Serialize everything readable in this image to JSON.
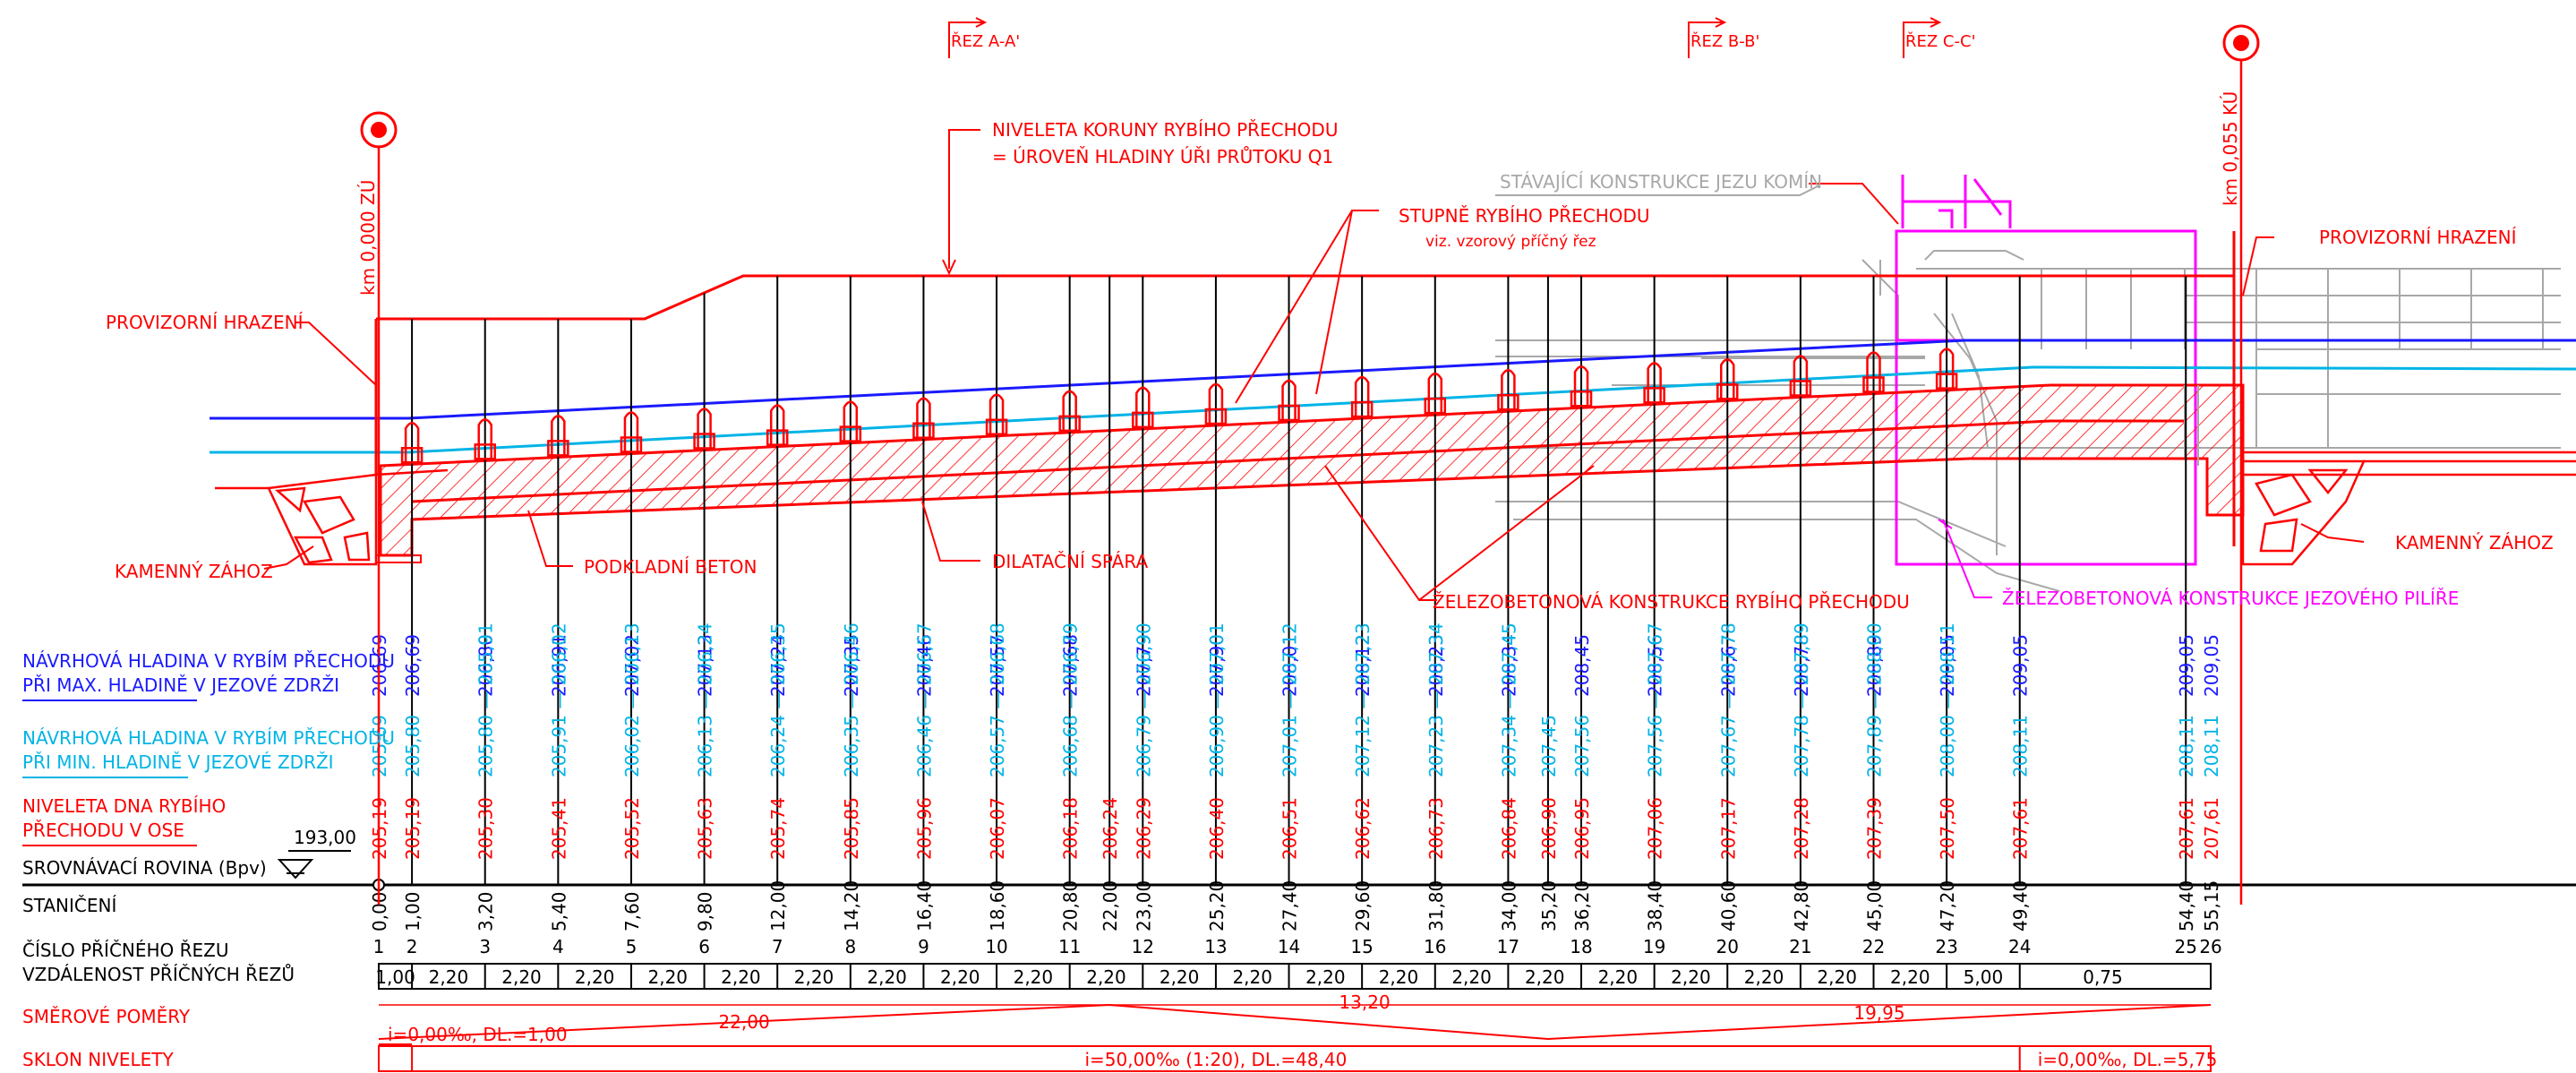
{
  "sections": [
    {
      "label": "ŘEZ A-A'"
    },
    {
      "label": "ŘEZ B-B'"
    },
    {
      "label": "ŘEZ C-C'"
    }
  ],
  "km_markers": [
    {
      "label": "km 0,000 ZÚ"
    },
    {
      "label": "km 0,055 KÚ"
    }
  ],
  "annotations": {
    "niveleta_line1": "NIVELETA KORUNY RYBÍHO PŘECHODU",
    "niveleta_line2": "= ÚROVEŇ HLADINY ÚŘI PRŮTOKU Q1",
    "stavajici": "STÁVAJÍCÍ KONSTRUKCE JEZU KOMÍN",
    "stupne_line1": "STUPNĚ RYBÍHO PŘECHODU",
    "stupne_line2": "viz.   vzorový příčný řez",
    "provizorni_left": "PROVIZORNÍ HRAZENÍ",
    "provizorni_right": "PROVIZORNÍ HRAZENÍ",
    "kamenny_left": "KAMENNÝ ZÁHOZ",
    "kamenny_right": "KAMENNÝ ZÁHOZ",
    "podkladni": "PODKLADNÍ BETON",
    "dilatacni": "DILATAČNÍ SPÁRA",
    "zelezo_prechod": "ŽELEZOBETONOVÁ KONSTRUKCE RYBÍHO PŘECHODU",
    "zelezo_pilire": "ŽELEZOBETONOVÁ KONSTRUKCE JEZOVÉHO PILÍŘE"
  },
  "row_labels": {
    "max_line1": "NÁVRHOVÁ HLADINA V RYBÍM PŘECHODU",
    "max_line2": "PŘI MAX. HLADINĚ V JEZOVÉ ZDRŽI",
    "min_line1": "NÁVRHOVÁ HLADINA V RYBÍM PŘECHODU",
    "min_line2": "PŘI MIN. HLADINĚ V JEZOVÉ ZDRŽI",
    "dno_line1": "NIVELETA DNA RYBÍHO",
    "dno_line2": "PŘECHODU V OSE",
    "srovnavaci": "SROVNÁVACÍ ROVINA (Bpv)",
    "srovnavaci_value": "193,00",
    "staniceni": "STANIČENÍ",
    "cislo": "ČÍSLO PŘÍČNÉHO ŘEZU",
    "vzdalenost": "VZDÁLENOST PŘÍČNÝCH ŘEZŮ",
    "smerove": "SMĚROVÉ POMĚRY",
    "sklon": "SKLON NIVELETY"
  },
  "profiles": [
    {
      "n": "1",
      "stan": "0,00",
      "max": "206,69",
      "min": "205,69",
      "dno": "205,19"
    },
    {
      "n": "2",
      "stan": "1,00",
      "max": "206,69",
      "min": "205,80",
      "dno": "205,19"
    },
    {
      "n": "3",
      "stan": "3,20",
      "max": "206,80",
      "min": "205,80 — 205,91",
      "dno": "205,30"
    },
    {
      "n": "4",
      "stan": "5,40",
      "max": "206,91",
      "min": "205,91 — 206,02",
      "dno": "205,41"
    },
    {
      "n": "5",
      "stan": "7,60",
      "max": "207,02",
      "min": "206,02 — 206,13",
      "dno": "205,52"
    },
    {
      "n": "6",
      "stan": "9,80",
      "max": "207,13",
      "min": "206,13 — 206,24",
      "dno": "205,63"
    },
    {
      "n": "7",
      "stan": "12,00",
      "max": "207,24",
      "min": "206,24 — 206,35",
      "dno": "205,74"
    },
    {
      "n": "8",
      "stan": "14,20",
      "max": "207,35",
      "min": "206,35 — 206,46",
      "dno": "205,85"
    },
    {
      "n": "9",
      "stan": "16,40",
      "max": "207,46",
      "min": "206,46 — 206,57",
      "dno": "205,96"
    },
    {
      "n": "10",
      "stan": "18,60",
      "max": "207,57",
      "min": "206,57 — 206,68",
      "dno": "206,07"
    },
    {
      "n": "11",
      "stan": "20,80",
      "max": "207,68",
      "min": "206,68 — 206,79",
      "dno": "206,18"
    },
    {
      "n": "",
      "stan": "22,00",
      "max": "",
      "min": "",
      "dno": "206,24"
    },
    {
      "n": "12",
      "stan": "23,00",
      "max": "207,79",
      "min": "206,79 — 206,90",
      "dno": "206,29"
    },
    {
      "n": "13",
      "stan": "25,20",
      "max": "207,90",
      "min": "206,90 — 207,01",
      "dno": "206,40"
    },
    {
      "n": "14",
      "stan": "27,40",
      "max": "208,01",
      "min": "207,01 — 207,12",
      "dno": "206,51"
    },
    {
      "n": "15",
      "stan": "29,60",
      "max": "208,12",
      "min": "207,12 — 207,23",
      "dno": "206,62"
    },
    {
      "n": "16",
      "stan": "31,80",
      "max": "208,23",
      "min": "207,23 — 207,34",
      "dno": "206,73"
    },
    {
      "n": "17",
      "stan": "34,00",
      "max": "208,34",
      "min": "207,34 — 207,45",
      "dno": "206,84"
    },
    {
      "n": "",
      "stan": "35,20",
      "max": "",
      "min": "207,45",
      "dno": "206,90"
    },
    {
      "n": "18",
      "stan": "36,20",
      "max": "208,45",
      "min": "207,56",
      "dno": "206,95"
    },
    {
      "n": "19",
      "stan": "38,40",
      "max": "208,56",
      "min": "207,56 — 207,67",
      "dno": "207,06"
    },
    {
      "n": "20",
      "stan": "40,60",
      "max": "208,67",
      "min": "207,67 — 207,78",
      "dno": "207,17"
    },
    {
      "n": "21",
      "stan": "42,80",
      "max": "208,78",
      "min": "207,78 — 207,89",
      "dno": "207,28"
    },
    {
      "n": "22",
      "stan": "45,00",
      "max": "208,89",
      "min": "207,89 — 208,00",
      "dno": "207,39"
    },
    {
      "n": "23",
      "stan": "47,20",
      "max": "209,05",
      "min": "208,00 — 208,11",
      "dno": "207,50"
    },
    {
      "n": "24",
      "stan": "49,40",
      "max": "209,05",
      "min": "208,11",
      "dno": "207,61"
    },
    {
      "n": "25",
      "stan": "54,40",
      "max": "209,05",
      "min": "208,11",
      "dno": "207,61"
    },
    {
      "n": "26",
      "stan": "55,15",
      "max": "209,05",
      "min": "208,11",
      "dno": "207,61"
    }
  ],
  "distances": [
    "1,00",
    "2,20",
    "2,20",
    "2,20",
    "2,20",
    "2,20",
    "2,20",
    "2,20",
    "2,20",
    "2,20",
    "2,20",
    "2,20",
    "2,20",
    "2,20",
    "2,20",
    "2,20",
    "2,20",
    "2,20",
    "2,20",
    "2,20",
    "2,20",
    "2,20",
    "5,00",
    "0,75"
  ],
  "smerove": [
    {
      "label": "22,00"
    },
    {
      "label": "13,20"
    },
    {
      "label": "19,95"
    }
  ],
  "sklon": [
    {
      "label": "i=0,00‰, DL.=1,00"
    },
    {
      "label": "i=50,00‰ (1:20), DL.=48,40"
    },
    {
      "label": "i=0,00‰, DL.=5,75"
    }
  ],
  "colors": {
    "red": "#ff0000",
    "blue": "#1a1aff",
    "cyan": "#00b4e6",
    "magenta": "#ff00ff",
    "grey": "#a8a8a8",
    "black": "#000000"
  }
}
